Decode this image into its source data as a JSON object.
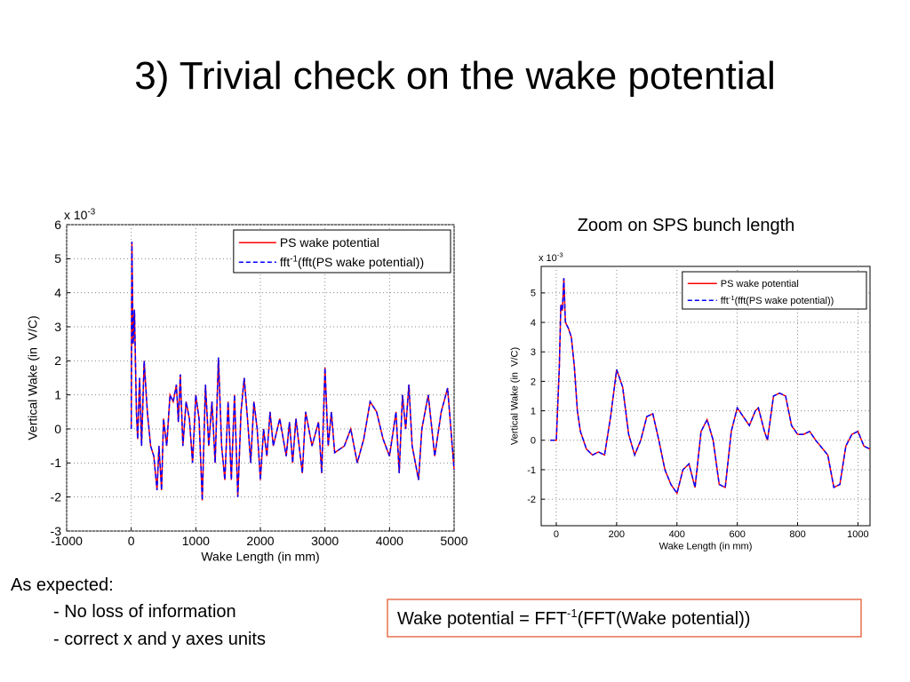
{
  "title": "3) Trivial check on the wake potential",
  "zoom_caption": "Zoom on SPS bunch length",
  "notes": {
    "heading": "As expected:",
    "items": [
      "- No loss of information",
      "- correct x and y axes units"
    ]
  },
  "formula": {
    "text": "Wake potential = FFT",
    "sup": "-1",
    "rest": "(FFT(Wake potential))"
  },
  "chart_data": [
    {
      "type": "line",
      "xlabel": "Wake Length (in mm)",
      "ylabel": "Vertical Wake (in  V/C)",
      "y_scale": {
        "text": "x 10",
        "sup": "-3"
      },
      "xlim": [
        -1000,
        5000
      ],
      "xticks": [
        -1000,
        0,
        1000,
        2000,
        3000,
        4000,
        5000
      ],
      "ylim": [
        -3,
        6
      ],
      "yticks": [
        -3,
        -2,
        -1,
        0,
        1,
        2,
        3,
        4,
        5,
        6
      ],
      "grid": true,
      "legend": "northeast",
      "x": [
        0,
        10,
        30,
        50,
        80,
        100,
        130,
        160,
        200,
        250,
        300,
        350,
        400,
        430,
        470,
        500,
        550,
        600,
        650,
        700,
        730,
        760,
        800,
        850,
        900,
        950,
        1000,
        1050,
        1100,
        1150,
        1200,
        1250,
        1300,
        1350,
        1400,
        1450,
        1500,
        1550,
        1600,
        1650,
        1700,
        1750,
        1800,
        1850,
        1900,
        1950,
        2000,
        2050,
        2100,
        2150,
        2200,
        2300,
        2400,
        2450,
        2500,
        2550,
        2650,
        2700,
        2800,
        2900,
        2950,
        3000,
        3050,
        3100,
        3150,
        3300,
        3400,
        3500,
        3600,
        3700,
        3800,
        3900,
        4000,
        4100,
        4150,
        4200,
        4250,
        4300,
        4350,
        4450,
        4500,
        4600,
        4700,
        4800,
        4900,
        5000
      ],
      "series": [
        {
          "name": "PS wake potential",
          "color": "#ff0000",
          "linestyle": "solid",
          "values": [
            0,
            5.5,
            2.5,
            3.5,
            0.5,
            -0.3,
            1.5,
            -0.5,
            2.0,
            0.5,
            -0.5,
            -0.8,
            -1.8,
            -0.5,
            -1.8,
            0.3,
            -0.5,
            1.0,
            0.8,
            1.3,
            0.2,
            1.6,
            -0.5,
            0.8,
            0.3,
            -1.0,
            1.0,
            0.3,
            -2.1,
            1.3,
            -0.5,
            0.8,
            -1.0,
            2.1,
            -0.5,
            -1.5,
            0.8,
            -1.5,
            1.0,
            -2.0,
            0.5,
            1.5,
            0.3,
            -1.0,
            0.8,
            0.0,
            -1.5,
            0.0,
            -0.8,
            0.5,
            -0.5,
            0.3,
            -0.8,
            0.2,
            -1.0,
            0.3,
            -1.3,
            0.5,
            -0.5,
            0.2,
            -1.3,
            1.8,
            -0.5,
            0.5,
            -0.7,
            -0.5,
            0.0,
            -1.0,
            -0.3,
            0.8,
            0.5,
            -0.3,
            -0.8,
            0.5,
            -1.3,
            1.0,
            0.0,
            1.3,
            -0.5,
            -1.5,
            0.0,
            1.0,
            -0.8,
            0.5,
            1.2,
            -1.2
          ]
        },
        {
          "name": {
            "text": "fft",
            "sup": "-1",
            "rest": "(fft(PS wake potential))"
          },
          "color": "#0000ff",
          "linestyle": "dashed",
          "values": [
            0,
            5.5,
            2.5,
            3.5,
            0.5,
            -0.3,
            1.5,
            -0.5,
            2.0,
            0.5,
            -0.5,
            -0.8,
            -1.8,
            -0.5,
            -1.8,
            0.3,
            -0.5,
            1.0,
            0.8,
            1.3,
            0.2,
            1.6,
            -0.5,
            0.8,
            0.3,
            -1.0,
            1.0,
            0.3,
            -2.1,
            1.3,
            -0.5,
            0.8,
            -1.0,
            2.1,
            -0.5,
            -1.5,
            0.8,
            -1.5,
            1.0,
            -2.0,
            0.5,
            1.5,
            0.3,
            -1.0,
            0.8,
            0.0,
            -1.5,
            0.0,
            -0.8,
            0.5,
            -0.5,
            0.3,
            -0.8,
            0.2,
            -1.0,
            0.3,
            -1.3,
            0.5,
            -0.5,
            0.2,
            -1.3,
            1.8,
            -0.5,
            0.5,
            -0.7,
            -0.5,
            0.0,
            -1.0,
            -0.3,
            0.8,
            0.5,
            -0.3,
            -0.8,
            0.5,
            -1.3,
            1.0,
            0.0,
            1.3,
            -0.5,
            -1.5,
            0.0,
            1.0,
            -0.8,
            0.5,
            1.2,
            -1.2
          ]
        }
      ]
    },
    {
      "type": "line",
      "xlabel": "Wake Length (in mm)",
      "ylabel": "Vertical Wake (in  V/C)",
      "y_scale": {
        "text": "x 10",
        "sup": "-3"
      },
      "xlim": [
        -50,
        1040
      ],
      "xticks": [
        0,
        200,
        400,
        600,
        800,
        1000
      ],
      "ylim": [
        -2.9,
        5.9
      ],
      "yticks": [
        -2,
        -1,
        0,
        1,
        2,
        3,
        4,
        5
      ],
      "grid": true,
      "legend": "northeast",
      "x": [
        -20,
        0,
        10,
        15,
        20,
        25,
        30,
        40,
        50,
        60,
        70,
        80,
        100,
        120,
        140,
        160,
        180,
        200,
        220,
        240,
        260,
        280,
        300,
        320,
        340,
        360,
        380,
        400,
        420,
        440,
        460,
        480,
        500,
        520,
        540,
        560,
        580,
        600,
        620,
        640,
        660,
        670,
        690,
        700,
        720,
        740,
        760,
        780,
        800,
        820,
        840,
        860,
        900,
        920,
        940,
        960,
        980,
        1000,
        1020,
        1040
      ],
      "series": [
        {
          "name": "PS wake potential",
          "color": "#ff0000",
          "linestyle": "solid",
          "values": [
            0,
            0,
            2.5,
            4.6,
            4.4,
            5.5,
            4.0,
            3.8,
            3.5,
            2.5,
            1.0,
            0.3,
            -0.3,
            -0.5,
            -0.4,
            -0.5,
            0.8,
            2.4,
            1.8,
            0.2,
            -0.5,
            0.0,
            0.8,
            0.9,
            0.0,
            -1.0,
            -1.5,
            -1.8,
            -1.0,
            -0.8,
            -1.6,
            0.3,
            0.7,
            0.0,
            -1.5,
            -1.6,
            0.3,
            1.1,
            0.8,
            0.5,
            1.0,
            1.1,
            0.3,
            0.0,
            1.5,
            1.6,
            1.5,
            0.5,
            0.2,
            0.2,
            0.3,
            0.0,
            -0.5,
            -1.6,
            -1.5,
            -0.2,
            0.2,
            0.3,
            -0.2,
            -0.3
          ]
        },
        {
          "name": {
            "text": "fft",
            "sup": "-1",
            "rest": "(fft(PS wake potential))"
          },
          "color": "#0000ff",
          "linestyle": "dashed",
          "values": [
            0,
            0,
            2.5,
            4.6,
            4.4,
            5.5,
            4.0,
            3.8,
            3.5,
            2.5,
            1.0,
            0.3,
            -0.3,
            -0.5,
            -0.4,
            -0.5,
            0.8,
            2.4,
            1.8,
            0.2,
            -0.5,
            0.0,
            0.8,
            0.9,
            0.0,
            -1.0,
            -1.5,
            -1.8,
            -1.0,
            -0.8,
            -1.6,
            0.3,
            0.7,
            0.0,
            -1.5,
            -1.6,
            0.3,
            1.1,
            0.8,
            0.5,
            1.0,
            1.1,
            0.3,
            0.0,
            1.5,
            1.6,
            1.5,
            0.5,
            0.2,
            0.2,
            0.3,
            0.0,
            -0.5,
            -1.6,
            -1.5,
            -0.2,
            0.2,
            0.3,
            -0.2,
            -0.3
          ]
        }
      ]
    }
  ]
}
